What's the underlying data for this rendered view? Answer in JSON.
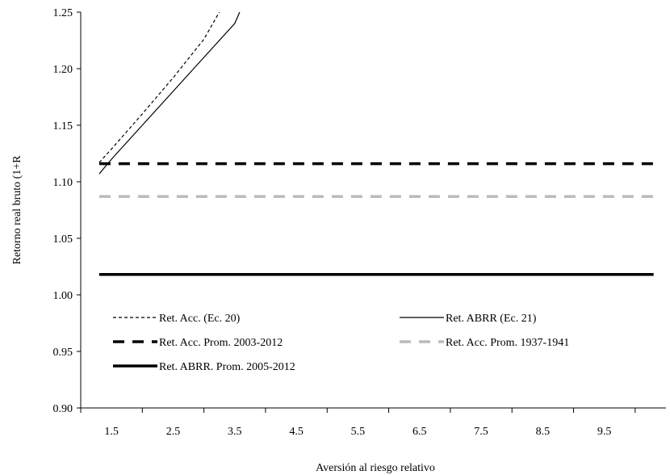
{
  "chart_data": {
    "type": "line",
    "title": "",
    "xlabel": "Aversión al riesgo relativo",
    "ylabel": "Retorno real bruto (1+R",
    "xlim": [
      1.0,
      10.5
    ],
    "ylim": [
      0.9,
      1.25
    ],
    "x_ticks": [
      "1.5",
      "2.5",
      "3.5",
      "4.5",
      "5.5",
      "6.5",
      "7.5",
      "8.5",
      "9.5"
    ],
    "y_ticks": [
      "0.90",
      "0.95",
      "1.00",
      "1.05",
      "1.10",
      "1.15",
      "1.20",
      "1.25"
    ],
    "grid": false,
    "legend_position": "inside-bottom",
    "series": [
      {
        "name": "Ret. Acc. (Ec. 20)",
        "color": "#000000",
        "style": "short-dash",
        "width": 1.2,
        "x": [
          1.3,
          1.5,
          2.0,
          2.5,
          3.0,
          3.25
        ],
        "y": [
          1.117,
          1.129,
          1.16,
          1.192,
          1.226,
          1.25
        ]
      },
      {
        "name": "Ret. ABRR (Ec. 21)",
        "color": "#000000",
        "style": "solid",
        "width": 1.2,
        "x": [
          1.3,
          1.5,
          2.0,
          2.5,
          3.0,
          3.5,
          3.58
        ],
        "y": [
          1.107,
          1.12,
          1.15,
          1.18,
          1.21,
          1.24,
          1.25
        ]
      },
      {
        "name": "Ret. Acc. Prom. 2003-2012",
        "color": "#000000",
        "style": "long-dash",
        "width": 3.5,
        "x": [
          1.3,
          10.3
        ],
        "y": [
          1.116,
          1.116
        ]
      },
      {
        "name": "Ret. Acc. Prom. 1937-1941",
        "color": "#bbbbbb",
        "style": "long-dash",
        "width": 3.5,
        "x": [
          1.3,
          10.3
        ],
        "y": [
          1.087,
          1.087
        ]
      },
      {
        "name": "Ret. ABRR. Prom. 2005-2012",
        "color": "#000000",
        "style": "solid",
        "width": 3.5,
        "x": [
          1.3,
          10.3
        ],
        "y": [
          1.018,
          1.018
        ]
      }
    ]
  }
}
